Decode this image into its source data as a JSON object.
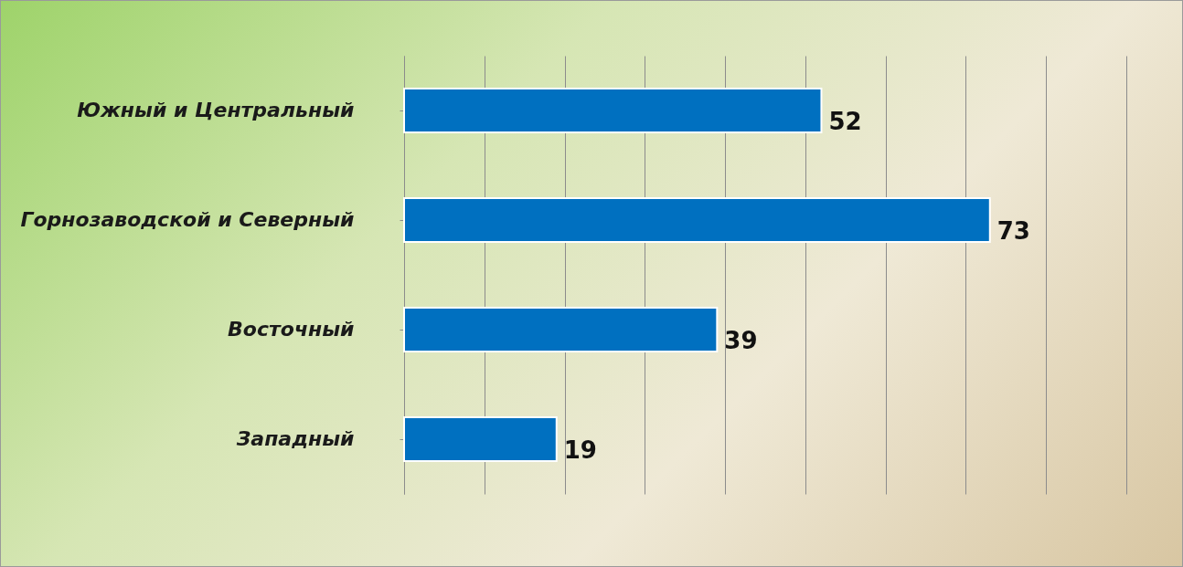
{
  "chart_data": {
    "type": "bar",
    "orientation": "horizontal",
    "categories": [
      "Южный и Центральный",
      "Горнозаводской и Северный",
      "Восточный",
      "Западный"
    ],
    "values": [
      52,
      73,
      39,
      19
    ],
    "color": "#0070c0",
    "data_labels": true,
    "xlim": [
      0,
      90
    ],
    "xticks": [
      {
        "value": 0,
        "label": null
      },
      {
        "value": 10,
        "label": null
      },
      {
        "value": 20,
        "label": null
      },
      {
        "value": 30,
        "label": null
      },
      {
        "value": 40,
        "label": null
      },
      {
        "value": 50,
        "label": null
      },
      {
        "value": 60,
        "label": null
      },
      {
        "value": 70,
        "label": null
      },
      {
        "value": 80,
        "label": null
      },
      {
        "value": 90,
        "label": null
      }
    ],
    "grid": "x",
    "tick_labels": "y"
  }
}
